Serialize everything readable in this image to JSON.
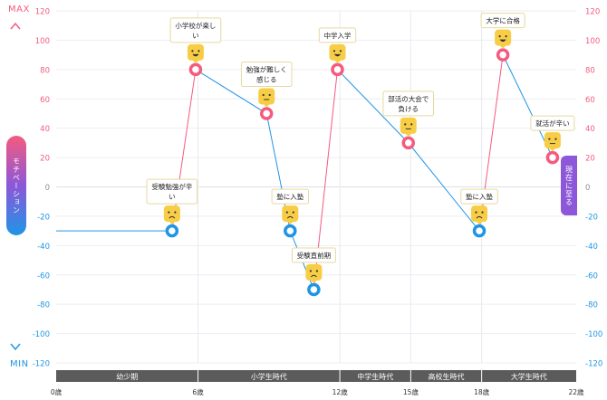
{
  "chart_data": {
    "type": "line",
    "y_range": [
      -120,
      120
    ],
    "y_ticks": [
      120,
      100,
      80,
      60,
      40,
      20,
      0,
      -20,
      -40,
      -60,
      -80,
      -100,
      -120
    ],
    "x_range": [
      0,
      22
    ],
    "x_ticks": [
      {
        "x": 0,
        "label": "0歳"
      },
      {
        "x": 6,
        "label": "6歳"
      },
      {
        "x": 12,
        "label": "12歳"
      },
      {
        "x": 15,
        "label": "15歳"
      },
      {
        "x": 18,
        "label": "18歳"
      },
      {
        "x": 22,
        "label": "22歳"
      }
    ],
    "max_label": "MAX",
    "min_label": "MIN",
    "axis_title": "モチベーション",
    "current_label": "現在に至る",
    "initial_value": -30,
    "periods": [
      {
        "label": "幼少期",
        "from": 0,
        "to": 6
      },
      {
        "label": "小学生時代",
        "from": 6,
        "to": 12
      },
      {
        "label": "中学生時代",
        "from": 12,
        "to": 15
      },
      {
        "label": "高校生時代",
        "from": 15,
        "to": 18
      },
      {
        "label": "大学生時代",
        "from": 18,
        "to": 22
      }
    ],
    "points": [
      {
        "x": 4.9,
        "y": -30,
        "label": "受験勉強が辛い",
        "mood": "sad"
      },
      {
        "x": 5.9,
        "y": 80,
        "label": "小学校が楽しい",
        "mood": "happy"
      },
      {
        "x": 8.9,
        "y": 50,
        "label": "勉強が難しく感じる",
        "mood": "neutral"
      },
      {
        "x": 9.9,
        "y": -30,
        "label": "塾に入塾",
        "mood": "sad"
      },
      {
        "x": 10.9,
        "y": -70,
        "label": "受験直前期",
        "mood": "sad"
      },
      {
        "x": 11.9,
        "y": 80,
        "label": "中学入学",
        "mood": "happy"
      },
      {
        "x": 14.9,
        "y": 30,
        "label": "部活の大会で負ける",
        "mood": "neutral"
      },
      {
        "x": 17.9,
        "y": -30,
        "label": "塾に入塾",
        "mood": "sad"
      },
      {
        "x": 18.9,
        "y": 90,
        "label": "大学に合格",
        "mood": "happy"
      },
      {
        "x": 21.0,
        "y": 20,
        "label": "就活が辛い",
        "mood": "neutral"
      }
    ]
  },
  "colors": {
    "positive": "#f45b7f",
    "negative": "#1e95e6",
    "mood_face": "#f8cd46",
    "band": "#5b5b5b",
    "current_pill": "#8c57d8"
  }
}
